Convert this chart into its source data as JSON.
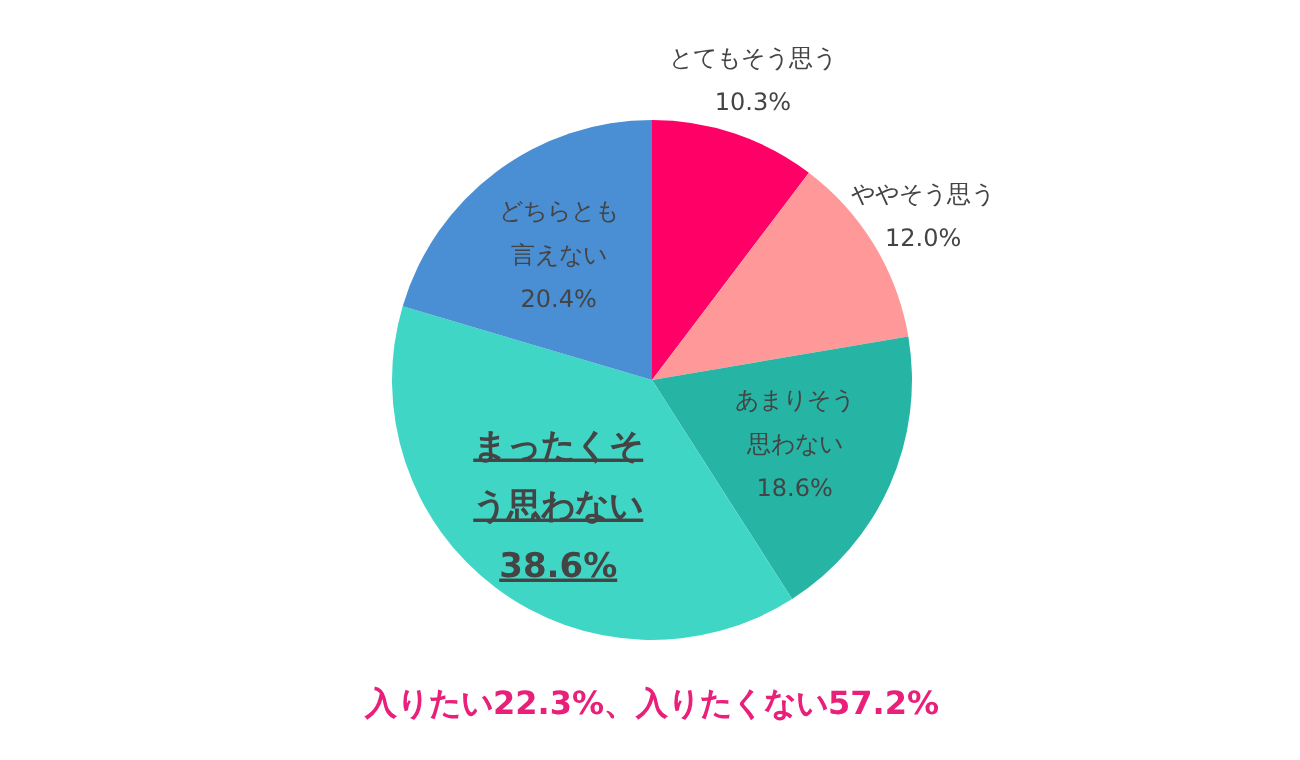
{
  "chart_data": {
    "type": "pie",
    "categories": [
      "とてもそう思う",
      "ややそう思う",
      "あまりそう思わない",
      "まったくそう思わない",
      "どちらとも言えない"
    ],
    "values": [
      10.3,
      12.0,
      18.6,
      38.6,
      20.4
    ],
    "value_labels": [
      "10.3%",
      "12.0%",
      "18.6%",
      "38.6%",
      "20.4%"
    ],
    "colors": [
      "#ff0066",
      "#ff9999",
      "#26b5a5",
      "#3fd6c6",
      "#4a8fd4"
    ],
    "annotations": [
      "入りたい22.3%、入りたくない57.2%"
    ]
  }
}
